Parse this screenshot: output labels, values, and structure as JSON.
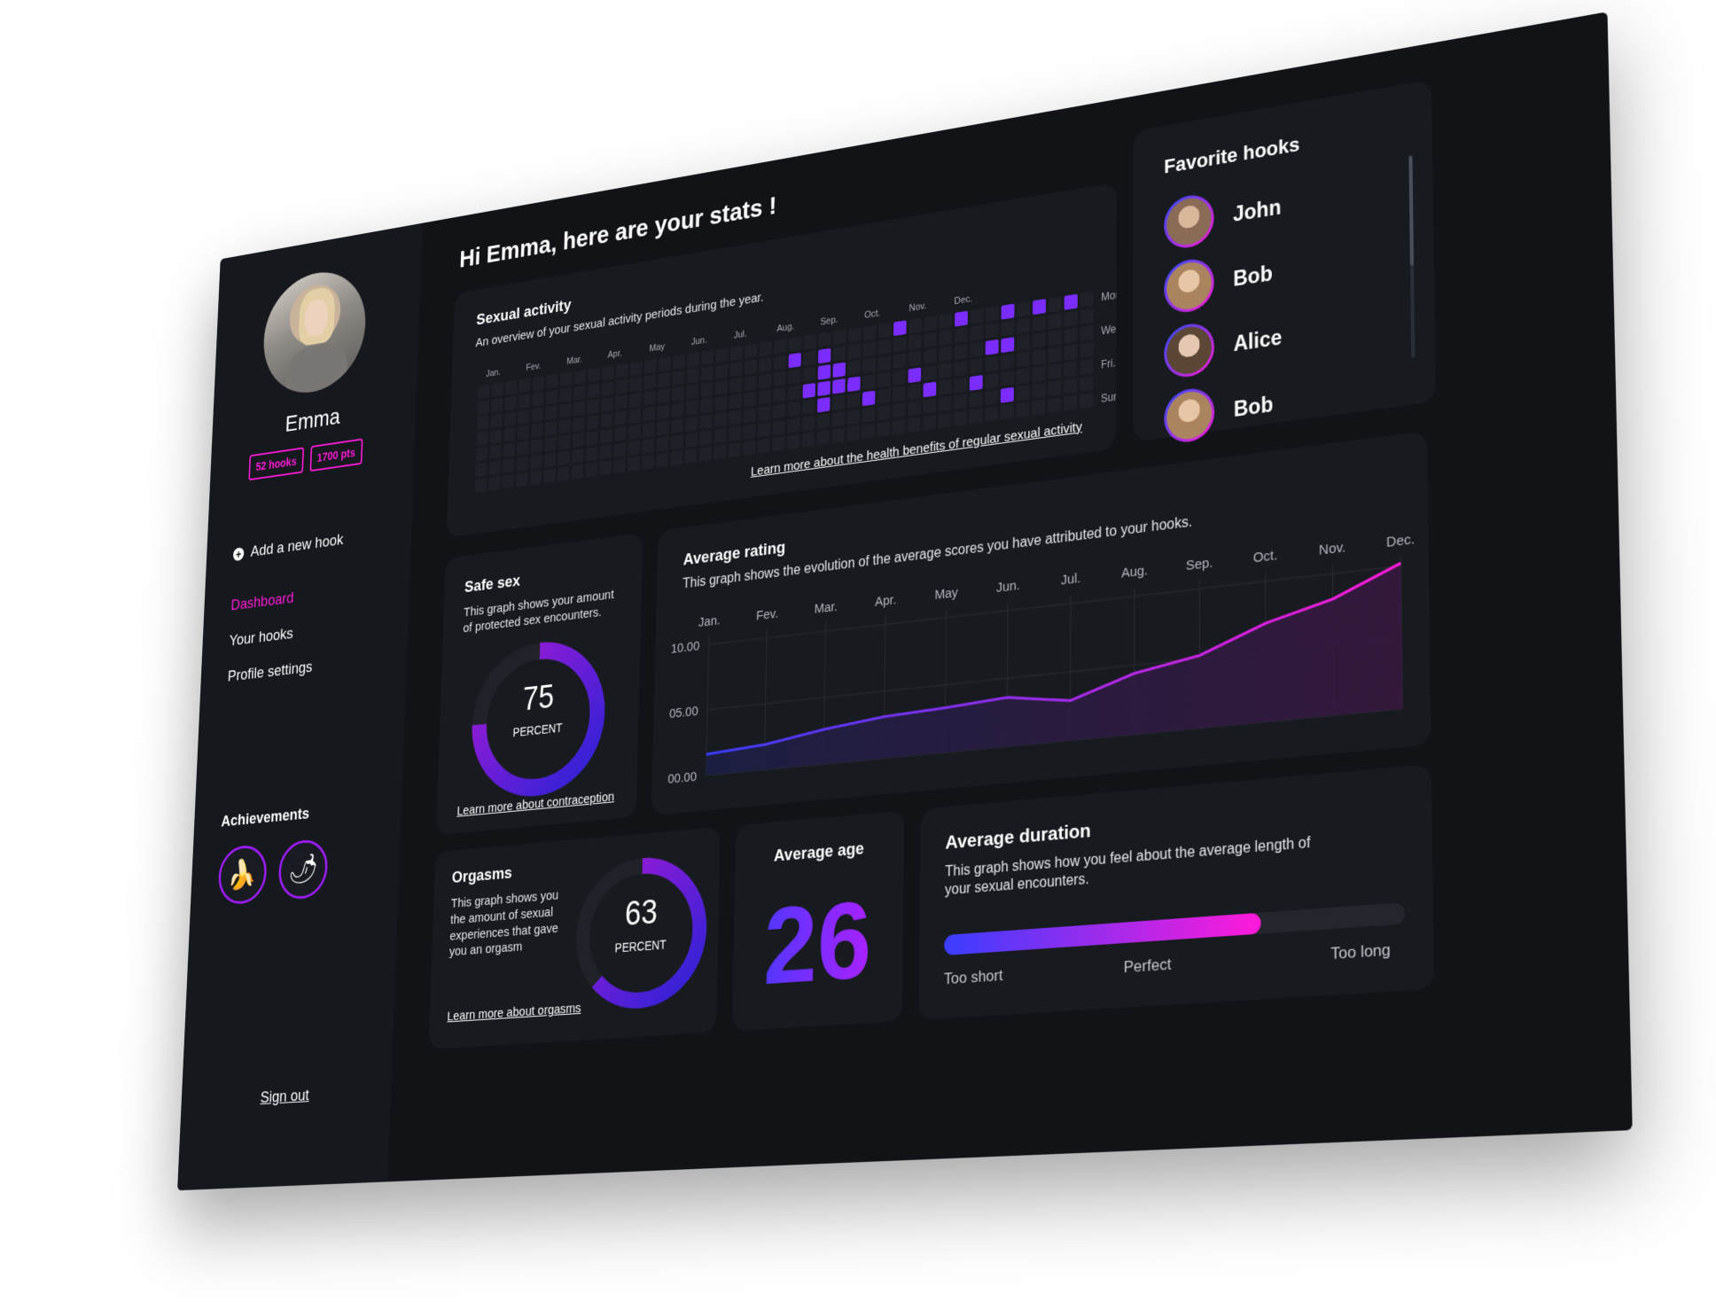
{
  "sidebar": {
    "user_name": "Emma",
    "badges": [
      "52 hooks",
      "1700 pts"
    ],
    "add_hook": "Add a new hook",
    "nav": [
      {
        "label": "Dashboard",
        "active": true
      },
      {
        "label": "Your hooks",
        "active": false
      },
      {
        "label": "Profile settings",
        "active": false
      }
    ],
    "achievements_title": "Achievements",
    "achievements": [
      {
        "icon": "banana-icon",
        "glyph": "🍌"
      },
      {
        "icon": "chili-pepper-icon",
        "glyph": "🌶"
      }
    ],
    "sign_out": "Sign out"
  },
  "main": {
    "title": "Hi Emma, here are your stats !"
  },
  "activity": {
    "title": "Sexual activity",
    "subtitle": "An overview of your sexual activity periods during the year.",
    "months": [
      "Jan.",
      "Fev.",
      "Mar.",
      "Apr.",
      "May",
      "Jun.",
      "Jul.",
      "Aug.",
      "Sep.",
      "Oct.",
      "Nov.",
      "Dec."
    ],
    "days": [
      "Mon.",
      "Wed.",
      "Fri.",
      "Sun."
    ],
    "link": "Learn more about the health benefits of regular sexual activity",
    "active_cells": [
      [
        22,
        1
      ],
      [
        24,
        1
      ],
      [
        24,
        2
      ],
      [
        25,
        2
      ],
      [
        23,
        3
      ],
      [
        24,
        3
      ],
      [
        26,
        3
      ],
      [
        25,
        3
      ],
      [
        24,
        4
      ],
      [
        27,
        4
      ],
      [
        29,
        0
      ],
      [
        30,
        3
      ],
      [
        31,
        4
      ],
      [
        33,
        0
      ],
      [
        34,
        4
      ],
      [
        35,
        2
      ],
      [
        36,
        0
      ],
      [
        36,
        2
      ],
      [
        36,
        5
      ],
      [
        38,
        0
      ],
      [
        40,
        0
      ]
    ]
  },
  "favorites": {
    "title": "Favorite hooks",
    "items": [
      {
        "name": "John",
        "tone": "#8a6b55"
      },
      {
        "name": "Bob",
        "tone": "#a9845e"
      },
      {
        "name": "Alice",
        "tone": "#5c4636"
      },
      {
        "name": "Bob",
        "tone": "#a9845e"
      }
    ]
  },
  "safe_sex": {
    "title": "Safe sex",
    "subtitle": "This graph shows your amount of protected sex encounters.",
    "value": "75",
    "unit": "PERCENT",
    "percent": 75,
    "link": "Learn more about contraception"
  },
  "rating": {
    "title": "Average rating",
    "subtitle": "This graph shows the evolution of the average scores you have attributed to your hooks."
  },
  "chart_data": {
    "type": "area",
    "title": "Average rating",
    "categories": [
      "Jan.",
      "Fev.",
      "Mar.",
      "Apr.",
      "May",
      "Jun.",
      "Jul.",
      "Aug.",
      "Sep.",
      "Oct.",
      "Nov.",
      "Dec."
    ],
    "y_ticks": [
      "10.00",
      "05.00",
      "00.00"
    ],
    "ylim": [
      0,
      10
    ],
    "series": [
      {
        "values": [
          1.6,
          1.9,
          2.6,
          3.1,
          3.3,
          3.6,
          2.9,
          4.4,
          5.2,
          7.0,
          8.2,
          10.2
        ]
      }
    ],
    "colors": [
      "#3a3dff",
      "#ff1ad9"
    ]
  },
  "orgasms": {
    "title": "Orgasms",
    "subtitle": "This graph shows you the amount of sexual experiences that gave you an orgasm",
    "value": "63",
    "unit": "PERCENT",
    "percent": 63,
    "link": "Learn more about orgasms"
  },
  "age": {
    "title": "Average age",
    "value": "26"
  },
  "duration": {
    "title": "Average duration",
    "subtitle": "This graph shows how you feel about the average length of your sexual encounters.",
    "labels": [
      "Too short",
      "Perfect",
      "Too long"
    ],
    "level": 0.7
  }
}
